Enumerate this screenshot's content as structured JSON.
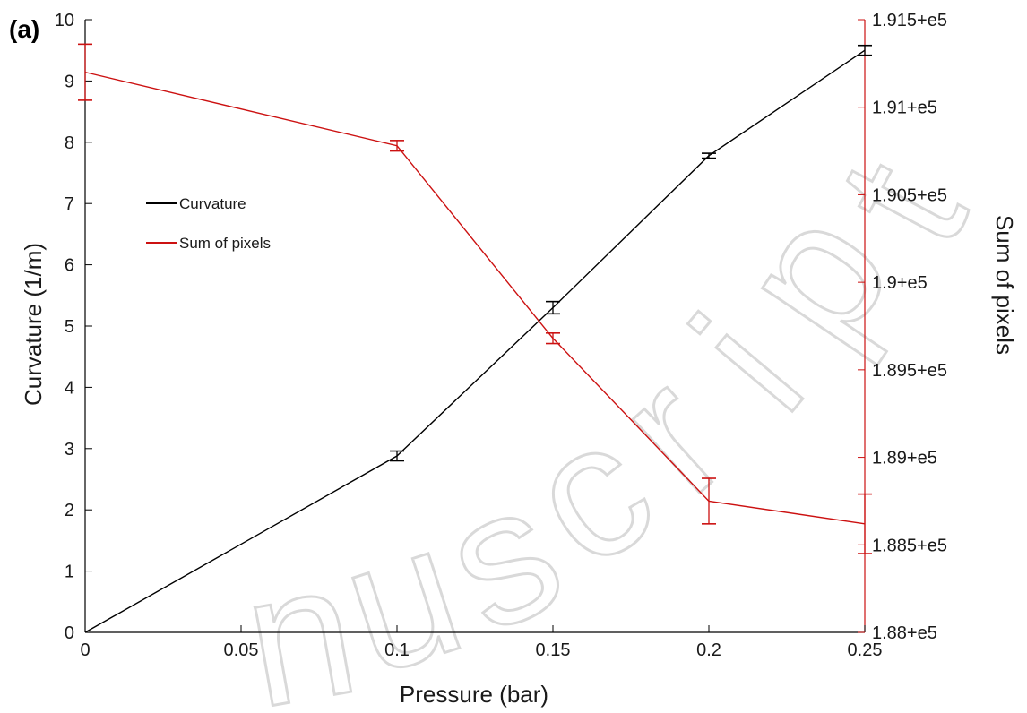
{
  "chart_data": {
    "type": "line",
    "panel_label": "(a)",
    "xlabel": "Pressure (bar)",
    "ylabel_left": "Curvature (1/m)",
    "ylabel_right": "Sum of pixels",
    "xlim": [
      0,
      0.25
    ],
    "ylim_left": [
      0,
      10
    ],
    "ylim_right": [
      188000,
      191500
    ],
    "x_ticks": [
      "0",
      "0.05",
      "0.1",
      "0.15",
      "0.2",
      "0.25"
    ],
    "y_left_ticks": [
      "0",
      "1",
      "2",
      "3",
      "4",
      "5",
      "6",
      "7",
      "8",
      "9",
      "10"
    ],
    "y_right_ticks": [
      "1.88+e5",
      "1.885+e5",
      "1.89+e5",
      "1.895+e5",
      "1.9+e5",
      "1.905+e5",
      "1.91+e5",
      "1.915+e5"
    ],
    "legend_position": "upper-left",
    "grid": false,
    "watermark": "Accepted Manuscript",
    "series": [
      {
        "name": "Curvature",
        "axis": "left",
        "color": "#000000",
        "x": [
          0,
          0.1,
          0.15,
          0.2,
          0.25
        ],
        "y": [
          0,
          2.88,
          5.3,
          7.78,
          9.5
        ],
        "err": [
          0,
          0.08,
          0.1,
          0.04,
          0.08
        ]
      },
      {
        "name": "Sum of pixels",
        "axis": "right",
        "color": "#cc1111",
        "x": [
          0,
          0.1,
          0.15,
          0.2,
          0.25
        ],
        "y": [
          191200,
          190780,
          189680,
          188750,
          188620
        ],
        "err": [
          160,
          30,
          30,
          130,
          170
        ]
      }
    ]
  }
}
